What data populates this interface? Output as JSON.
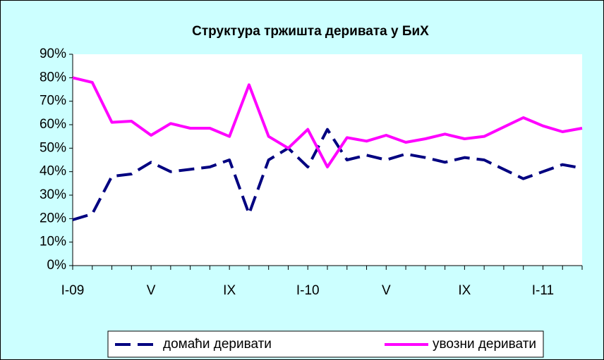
{
  "chart_data": {
    "type": "line",
    "title": "Структура тржишта деривата у БиХ",
    "categories": [
      "I-09",
      null,
      null,
      null,
      "V",
      null,
      null,
      null,
      "IX",
      null,
      null,
      null,
      "I-10",
      null,
      null,
      null,
      "V",
      null,
      null,
      null,
      "IX",
      null,
      null,
      null,
      "I-11",
      null,
      null
    ],
    "series": [
      {
        "name": "домаћи деривати",
        "color": "#000080",
        "dashed": true,
        "values": [
          19.5,
          22,
          38,
          39,
          44,
          40,
          41,
          42,
          45,
          22,
          45,
          50,
          42,
          58,
          45,
          47,
          45,
          47.5,
          46,
          44,
          46,
          45,
          41,
          37,
          40,
          43,
          41.5
        ]
      },
      {
        "name": "увозни деривати",
        "color": "#ff00ff",
        "dashed": false,
        "values": [
          80,
          78,
          61,
          61.5,
          55.5,
          60.5,
          58.5,
          58.5,
          55,
          77,
          55,
          50,
          58,
          42,
          54.5,
          53,
          55.5,
          52.5,
          54,
          56,
          54,
          55,
          59,
          63,
          59.5,
          57,
          58.5
        ]
      }
    ],
    "ylim": [
      0,
      90
    ],
    "yticks": [
      {
        "value": 0,
        "label": "0%"
      },
      {
        "value": 10,
        "label": "10%"
      },
      {
        "value": 20,
        "label": "20%"
      },
      {
        "value": 30,
        "label": "30%"
      },
      {
        "value": 40,
        "label": "40%"
      },
      {
        "value": 50,
        "label": "50%"
      },
      {
        "value": 60,
        "label": "60%"
      },
      {
        "value": 70,
        "label": "70%"
      },
      {
        "value": 80,
        "label": "80%"
      },
      {
        "value": 90,
        "label": "90%"
      }
    ],
    "legend": "bottom"
  }
}
